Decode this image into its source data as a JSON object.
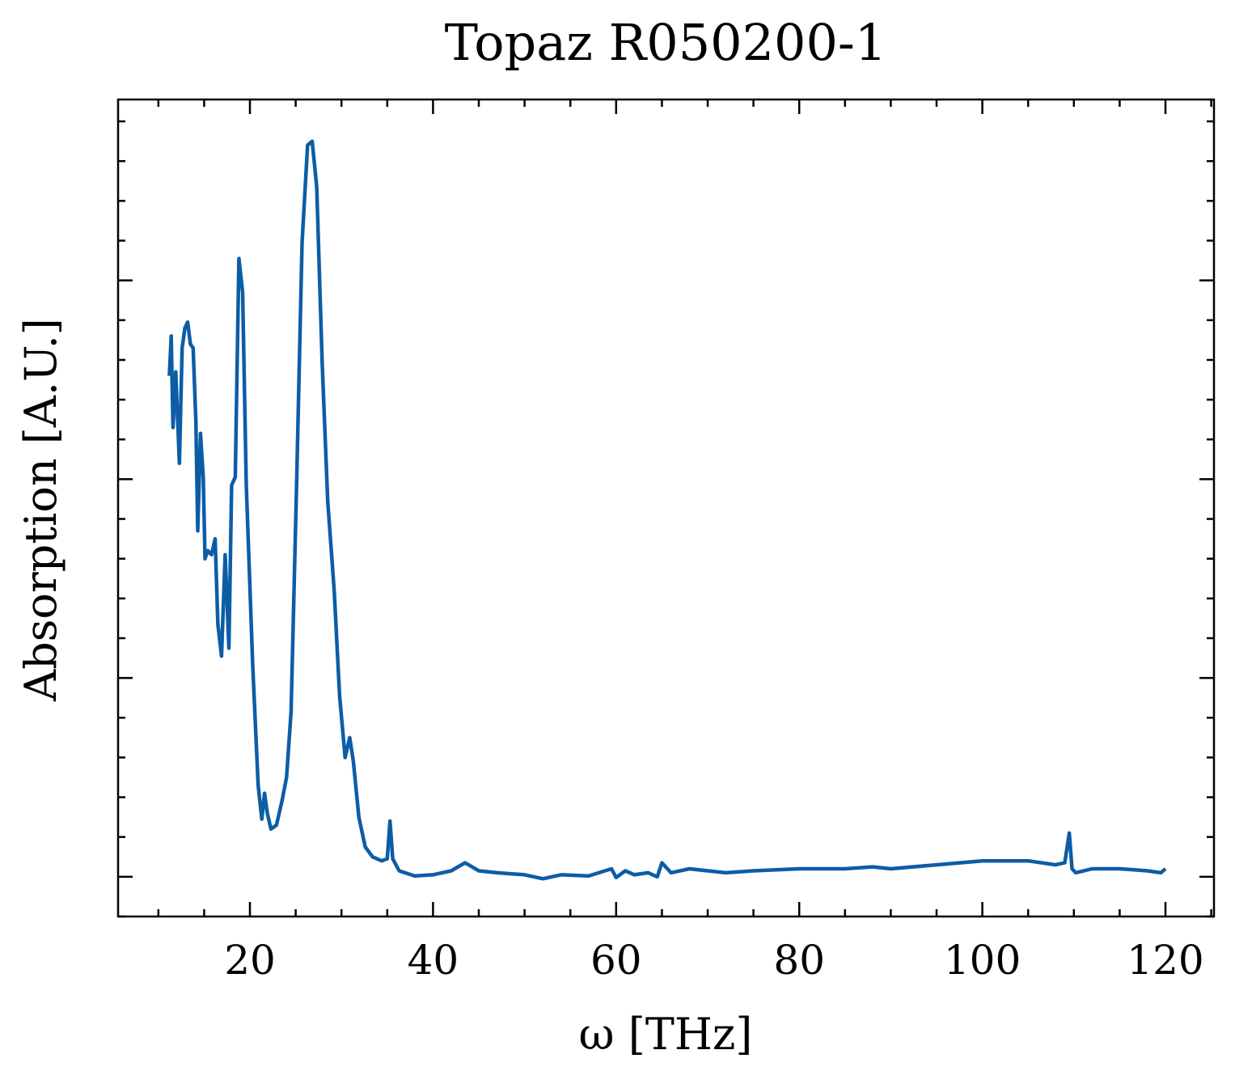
{
  "chart_data": {
    "type": "line",
    "title": "Topaz R050200-1",
    "x_label": "ω [THz]",
    "y_label": "Absorption [A.U.]",
    "xlim": [
      5.6,
      125.3
    ],
    "ylim": [
      -0.2,
      3.91
    ],
    "xticks": [
      20,
      40,
      60,
      80,
      100,
      120
    ],
    "xminorticks": [
      10,
      15,
      25,
      30,
      35,
      45,
      50,
      55,
      65,
      70,
      75,
      85,
      90,
      95,
      105,
      110,
      115,
      125
    ],
    "yticks": [
      0,
      1,
      2,
      3
    ],
    "yminorticks": [
      -0.2,
      0.2,
      0.4,
      0.6,
      0.8,
      1.2,
      1.4,
      1.6,
      1.8,
      2.2,
      2.4,
      2.6,
      2.8,
      3.2,
      3.4,
      3.6,
      3.8
    ],
    "series": [
      {
        "color": "#0c5da5",
        "x": [
          11.2,
          11.4,
          11.6,
          11.9,
          12.3,
          12.6,
          12.9,
          13.2,
          13.5,
          13.8,
          14.1,
          14.3,
          14.6,
          14.9,
          15.1,
          15.4,
          15.8,
          16.2,
          16.5,
          16.9,
          17.3,
          17.7,
          18.0,
          18.4,
          18.8,
          19.2,
          19.6,
          20.3,
          20.9,
          21.3,
          21.6,
          21.9,
          22.3,
          22.9,
          23.5,
          24.0,
          24.5,
          25.1,
          25.7,
          26.3,
          26.8,
          27.3,
          27.9,
          28.5,
          29.2,
          29.8,
          30.4,
          30.9,
          31.3,
          31.9,
          32.6,
          33.4,
          34.4,
          35.0,
          35.3,
          35.6,
          36.3,
          38,
          40,
          42,
          43.5,
          45,
          47,
          50,
          52,
          54,
          57,
          59.5,
          60,
          61,
          62,
          63.5,
          64.5,
          65,
          66,
          68,
          70,
          72,
          75,
          80,
          85,
          88,
          90,
          95,
          100,
          105,
          108,
          109,
          109.5,
          109.8,
          110.2,
          112,
          115,
          118,
          119.5,
          120
        ],
        "values": [
          2.52,
          2.72,
          2.26,
          2.54,
          2.08,
          2.66,
          2.76,
          2.79,
          2.68,
          2.66,
          2.29,
          1.74,
          2.23,
          2.01,
          1.6,
          1.64,
          1.62,
          1.7,
          1.27,
          1.11,
          1.62,
          1.15,
          1.97,
          2.01,
          3.11,
          2.94,
          1.97,
          1.07,
          0.46,
          0.29,
          0.42,
          0.32,
          0.24,
          0.26,
          0.38,
          0.5,
          0.83,
          1.97,
          3.19,
          3.68,
          3.7,
          3.47,
          2.58,
          1.89,
          1.44,
          0.91,
          0.6,
          0.7,
          0.58,
          0.3,
          0.15,
          0.1,
          0.08,
          0.09,
          0.28,
          0.09,
          0.03,
          0.004,
          0.01,
          0.03,
          0.07,
          0.03,
          0.02,
          0.01,
          -0.01,
          0.01,
          0.004,
          0.04,
          -0.004,
          0.03,
          0.01,
          0.02,
          0,
          0.07,
          0.02,
          0.04,
          0.03,
          0.02,
          0.03,
          0.04,
          0.04,
          0.05,
          0.04,
          0.06,
          0.08,
          0.08,
          0.06,
          0.07,
          0.22,
          0.04,
          0.02,
          0.04,
          0.04,
          0.03,
          0.02,
          0.04
        ]
      }
    ]
  }
}
